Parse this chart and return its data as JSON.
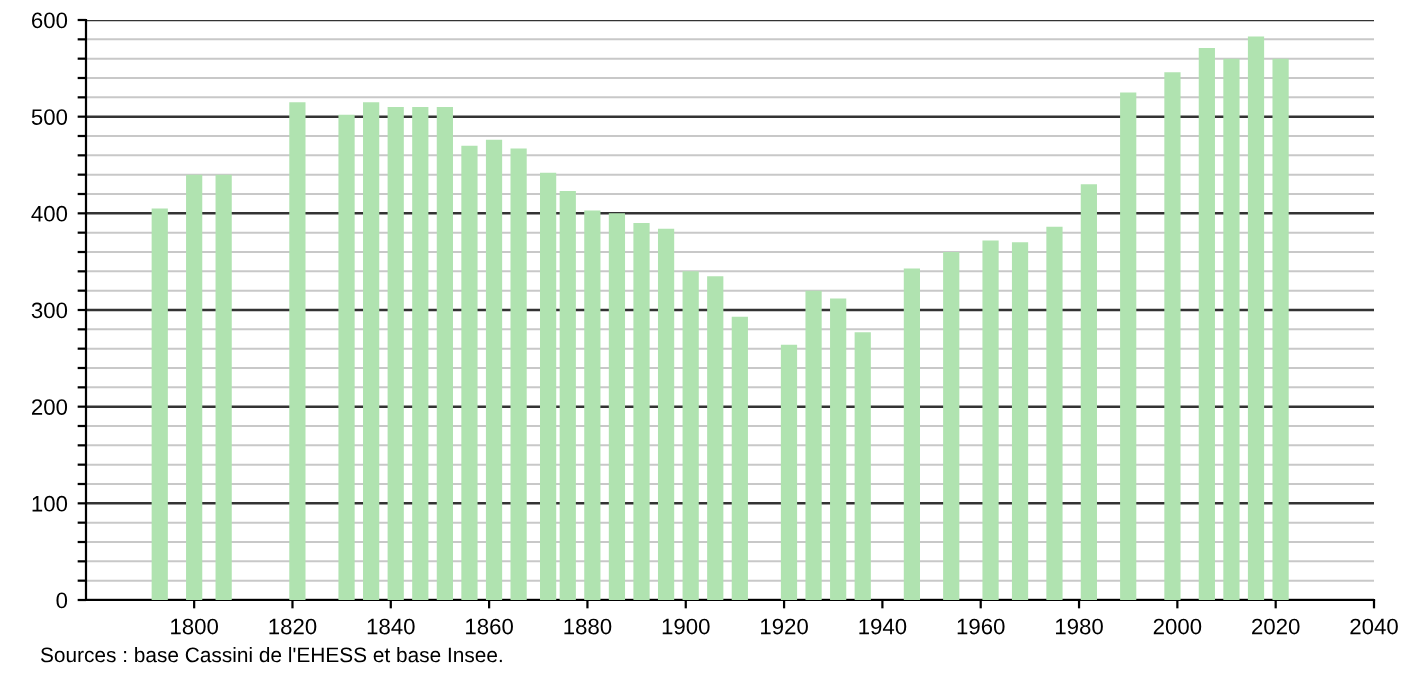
{
  "chart_data": {
    "type": "bar",
    "x": [
      1793,
      1800,
      1806,
      1821,
      1831,
      1836,
      1841,
      1846,
      1851,
      1856,
      1861,
      1866,
      1872,
      1876,
      1881,
      1886,
      1891,
      1896,
      1901,
      1906,
      1911,
      1921,
      1926,
      1931,
      1936,
      1946,
      1954,
      1962,
      1968,
      1975,
      1982,
      1990,
      1999,
      2006,
      2011,
      2016,
      2021
    ],
    "values": [
      405,
      440,
      440,
      515,
      502,
      515,
      510,
      510,
      510,
      470,
      476,
      467,
      442,
      423,
      403,
      400,
      390,
      384,
      340,
      335,
      293,
      264,
      320,
      312,
      277,
      343,
      360,
      372,
      370,
      386,
      430,
      525,
      546,
      571,
      560,
      583,
      560
    ],
    "color": "#b0e3b0",
    "xlim": [
      1778,
      2040
    ],
    "xticks": [
      1800,
      1820,
      1840,
      1860,
      1880,
      1900,
      1920,
      1940,
      1960,
      1980,
      2000,
      2020,
      2040
    ],
    "ylim": [
      0,
      600
    ],
    "yticks": [
      0,
      {
        "value": 20,
        "label": null
      },
      {
        "value": 40,
        "label": null
      },
      {
        "value": 60,
        "label": null
      },
      {
        "value": 80,
        "label": null
      },
      100,
      {
        "value": 120,
        "label": null
      },
      {
        "value": 140,
        "label": null
      },
      {
        "value": 160,
        "label": null
      },
      {
        "value": 180,
        "label": null
      },
      200,
      {
        "value": 220,
        "label": null
      },
      {
        "value": 240,
        "label": null
      },
      {
        "value": 260,
        "label": null
      },
      {
        "value": 280,
        "label": null
      },
      300,
      {
        "value": 320,
        "label": null
      },
      {
        "value": 340,
        "label": null
      },
      {
        "value": 360,
        "label": null
      },
      {
        "value": 380,
        "label": null
      },
      400,
      {
        "value": 420,
        "label": null
      },
      {
        "value": 440,
        "label": null
      },
      {
        "value": 460,
        "label": null
      },
      {
        "value": 480,
        "label": null
      },
      500,
      {
        "value": 520,
        "label": null
      },
      {
        "value": 540,
        "label": null
      },
      {
        "value": 560,
        "label": null
      },
      {
        "value": 580,
        "label": null
      },
      600
    ],
    "grid": "y",
    "annotations": [
      "Sources : base Cassini de l'EHESS et base Insee."
    ]
  }
}
